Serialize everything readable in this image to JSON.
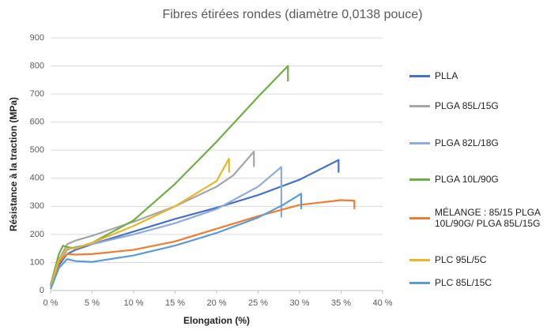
{
  "chart_data": {
    "type": "line",
    "title": "Fibres étirées rondes (diamètre 0,0138 pouce)",
    "xlabel": "Elongation (%)",
    "ylabel": "Résistance à la traction (MPa)",
    "xlim": [
      0,
      40
    ],
    "ylim": [
      0,
      900
    ],
    "xticks": [
      {
        "value": 0,
        "label": "0 %"
      },
      {
        "value": 5,
        "label": "5 %"
      },
      {
        "value": 10,
        "label": "10 %"
      },
      {
        "value": 15,
        "label": "15 %"
      },
      {
        "value": 20,
        "label": "20 %"
      },
      {
        "value": 25,
        "label": "25 %"
      },
      {
        "value": 30,
        "label": "30 %"
      },
      {
        "value": 35,
        "label": "35 %"
      },
      {
        "value": 40,
        "label": "40 %"
      }
    ],
    "yticks": [
      0,
      100,
      200,
      300,
      400,
      500,
      600,
      700,
      800,
      900
    ],
    "legend": "right",
    "series": [
      {
        "name": "PLLA",
        "color": "#4472c4",
        "x": [
          0,
          1,
          2,
          3,
          5,
          10,
          15,
          20,
          25,
          30,
          34.7,
          34.7
        ],
        "values": [
          20,
          90,
          130,
          145,
          165,
          210,
          255,
          295,
          340,
          395,
          465,
          420
        ]
      },
      {
        "name": "PLGA 85L/15G",
        "color": "#a5a5a5",
        "x": [
          0,
          1,
          2,
          3,
          5,
          10,
          15,
          20,
          22,
          24.5,
          24.5
        ],
        "values": [
          20,
          110,
          165,
          178,
          195,
          245,
          300,
          370,
          410,
          495,
          440
        ]
      },
      {
        "name": "PLGA 82L/18G",
        "color": "#8faadc",
        "x": [
          0,
          1,
          2,
          3,
          5,
          10,
          15,
          20,
          25,
          27.8,
          27.8
        ],
        "values": [
          15,
          100,
          145,
          155,
          165,
          200,
          240,
          290,
          370,
          440,
          260
        ]
      },
      {
        "name": "PLGA 10L/90G",
        "color": "#70ad47",
        "x": [
          0,
          1,
          1.5,
          2,
          3,
          5,
          10,
          15,
          20,
          25,
          28.6,
          28.6
        ],
        "values": [
          20,
          130,
          160,
          155,
          150,
          170,
          250,
          380,
          530,
          690,
          800,
          745
        ]
      },
      {
        "name": "MÉLANGE : 85/15 PLGA 10L/90G/ PLGA 85L/15G",
        "color": "#ed7d31",
        "x": [
          0,
          1,
          2,
          3,
          5,
          10,
          15,
          20,
          25,
          30,
          35,
          36.6,
          36.6
        ],
        "values": [
          15,
          100,
          130,
          128,
          130,
          145,
          175,
          220,
          265,
          305,
          322,
          320,
          290
        ]
      },
      {
        "name": "PLC 95L/5C",
        "color": "#e9b52c",
        "x": [
          0,
          1,
          2,
          3,
          5,
          10,
          15,
          20,
          21.5,
          21.5
        ],
        "values": [
          15,
          110,
          150,
          150,
          170,
          230,
          300,
          390,
          470,
          420
        ]
      },
      {
        "name": "PLC 85L/15C",
        "color": "#5b9bd5",
        "x": [
          0,
          1,
          2,
          3,
          5,
          10,
          15,
          20,
          25,
          28,
          30.2,
          30.2
        ],
        "values": [
          5,
          80,
          112,
          105,
          102,
          125,
          160,
          205,
          260,
          305,
          345,
          290
        ]
      }
    ]
  }
}
